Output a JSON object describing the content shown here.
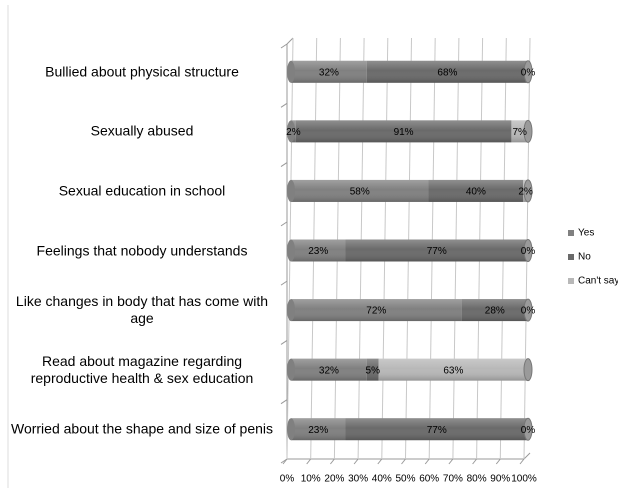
{
  "chart_data": {
    "type": "stacked-bar-horizontal",
    "categories": [
      "Bullied about physical structure",
      "Sexually abused",
      "Sexual education in school",
      "Feelings that nobody understands",
      "Like changes in body that has come with age",
      "Read about magazine regarding reproductive health & sex education",
      "Worried about the shape and size of penis"
    ],
    "series": [
      {
        "name": "Yes",
        "color": "#808080",
        "values": [
          32,
          2,
          58,
          23,
          72,
          32,
          23
        ],
        "value_labels": [
          "32%",
          "2%",
          "58%",
          "23%",
          "72%",
          "32%",
          "23%"
        ]
      },
      {
        "name": "No",
        "color": "#6a6a6a",
        "values": [
          68,
          91,
          40,
          77,
          28,
          5,
          77
        ],
        "value_labels": [
          "68%",
          "91%",
          "40%",
          "77%",
          "28%",
          "5%",
          "77%"
        ]
      },
      {
        "name": "Can't say",
        "color": "#b8b8b8",
        "values": [
          0,
          7,
          2,
          0,
          0,
          63,
          0
        ],
        "value_labels": [
          "0%",
          "7%",
          "2%",
          "0%",
          "0%",
          "63%",
          "0%"
        ]
      }
    ],
    "xlim": [
      0,
      100
    ],
    "xticks": [
      {
        "value": 0,
        "label": "0%"
      },
      {
        "value": 10,
        "label": "10%"
      },
      {
        "value": 20,
        "label": "20%"
      },
      {
        "value": 30,
        "label": "30%"
      },
      {
        "value": 40,
        "label": "40%"
      },
      {
        "value": 50,
        "label": "50%"
      },
      {
        "value": 60,
        "label": "60%"
      },
      {
        "value": 70,
        "label": "70%"
      },
      {
        "value": 80,
        "label": "80%"
      },
      {
        "value": 90,
        "label": "90%"
      },
      {
        "value": 100,
        "label": "100%"
      }
    ],
    "grid": true,
    "legend": "right"
  }
}
